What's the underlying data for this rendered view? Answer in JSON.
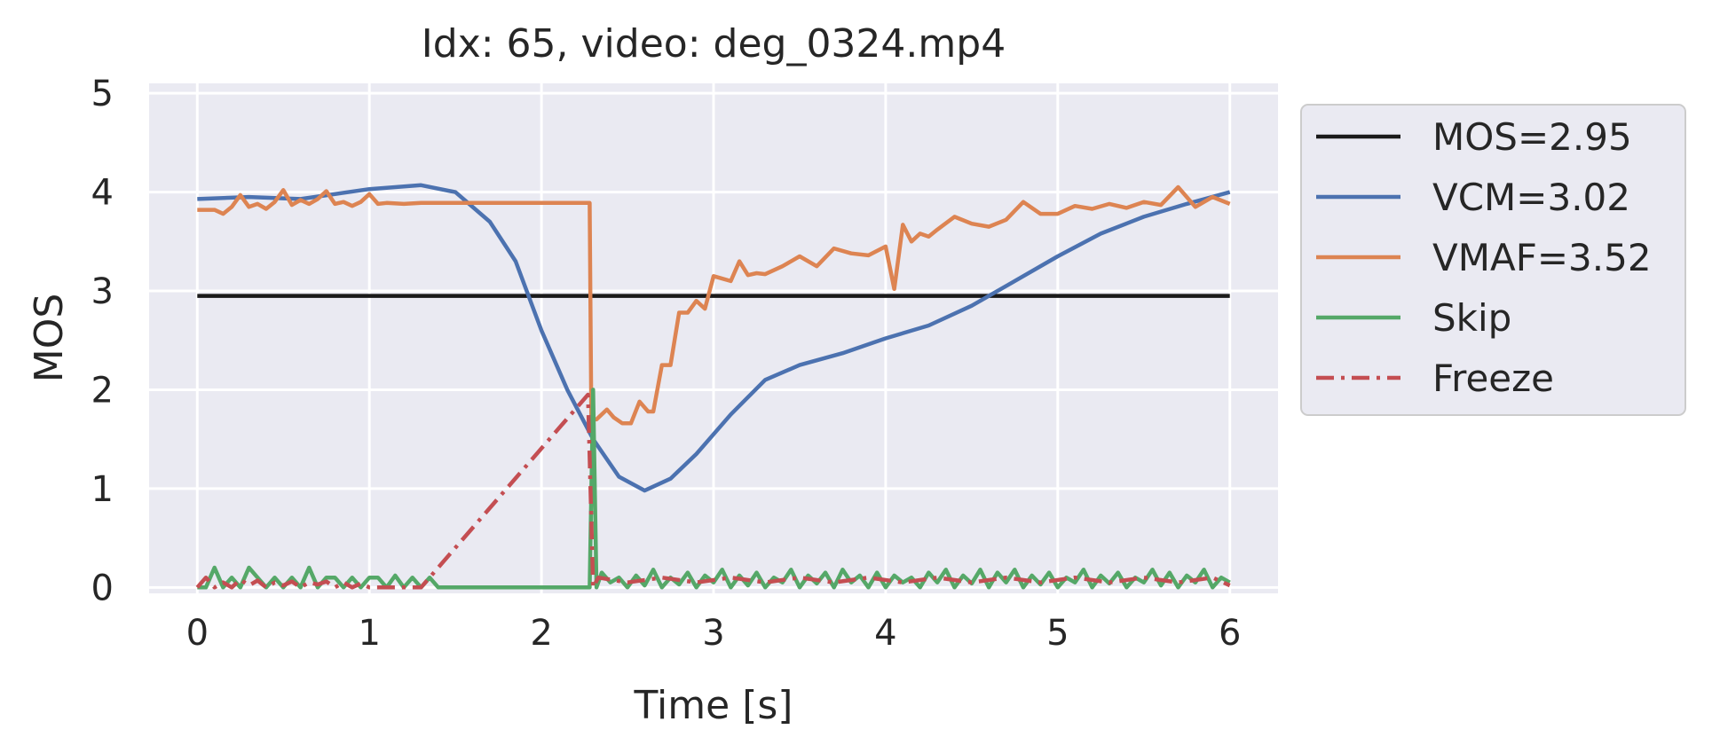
{
  "chart_data": {
    "type": "line",
    "title": "Idx: 65, video: deg_0324.mp4",
    "xlabel": "Time [s]",
    "ylabel": "MOS",
    "xlim": [
      -0.28,
      6.28
    ],
    "ylim": [
      -0.06,
      5.1
    ],
    "xticks": [
      0,
      1,
      2,
      3,
      4,
      5,
      6
    ],
    "yticks": [
      0,
      1,
      2,
      3,
      4,
      5
    ],
    "grid": true,
    "legend_position": "outside-right",
    "series": [
      {
        "name": "MOS=2.95",
        "color": "#1a1a1a",
        "style": "solid",
        "x": [
          0,
          6
        ],
        "y": [
          2.95,
          2.95
        ]
      },
      {
        "name": "VCM=3.02",
        "color": "#4c72b0",
        "style": "solid",
        "x": [
          0,
          0.3,
          0.6,
          1.0,
          1.3,
          1.5,
          1.7,
          1.85,
          2.0,
          2.15,
          2.3,
          2.45,
          2.6,
          2.75,
          2.9,
          3.1,
          3.3,
          3.5,
          3.75,
          4.0,
          4.25,
          4.5,
          4.75,
          5.0,
          5.25,
          5.5,
          5.75,
          6.0
        ],
        "y": [
          3.93,
          3.95,
          3.93,
          4.03,
          4.07,
          4.0,
          3.7,
          3.3,
          2.6,
          2.0,
          1.5,
          1.12,
          0.98,
          1.1,
          1.35,
          1.75,
          2.1,
          2.25,
          2.37,
          2.52,
          2.65,
          2.85,
          3.1,
          3.35,
          3.58,
          3.75,
          3.88,
          4.0
        ]
      },
      {
        "name": "VMAF=3.52",
        "color": "#dd8452",
        "style": "solid",
        "x": [
          0,
          0.1,
          0.15,
          0.2,
          0.25,
          0.3,
          0.35,
          0.4,
          0.45,
          0.5,
          0.55,
          0.6,
          0.65,
          0.7,
          0.75,
          0.8,
          0.85,
          0.9,
          0.95,
          1.0,
          1.05,
          1.1,
          1.2,
          1.3,
          1.4,
          1.6,
          1.8,
          2.0,
          2.1,
          2.2,
          2.28,
          2.29,
          2.32,
          2.38,
          2.42,
          2.47,
          2.52,
          2.57,
          2.62,
          2.65,
          2.7,
          2.75,
          2.8,
          2.85,
          2.9,
          2.95,
          3.0,
          3.1,
          3.15,
          3.2,
          3.25,
          3.3,
          3.4,
          3.5,
          3.6,
          3.7,
          3.8,
          3.9,
          4.0,
          4.05,
          4.1,
          4.15,
          4.2,
          4.25,
          4.3,
          4.4,
          4.5,
          4.6,
          4.7,
          4.8,
          4.9,
          5.0,
          5.1,
          5.2,
          5.3,
          5.4,
          5.5,
          5.6,
          5.7,
          5.8,
          5.9,
          6.0
        ],
        "y": [
          3.82,
          3.82,
          3.78,
          3.85,
          3.97,
          3.85,
          3.88,
          3.83,
          3.9,
          4.02,
          3.87,
          3.92,
          3.88,
          3.93,
          4.01,
          3.88,
          3.9,
          3.86,
          3.9,
          3.98,
          3.88,
          3.89,
          3.88,
          3.89,
          3.89,
          3.89,
          3.89,
          3.89,
          3.89,
          3.89,
          3.89,
          1.7,
          1.7,
          1.8,
          1.72,
          1.66,
          1.66,
          1.88,
          1.78,
          1.78,
          2.25,
          2.25,
          2.78,
          2.78,
          2.9,
          2.82,
          3.15,
          3.1,
          3.3,
          3.16,
          3.18,
          3.17,
          3.25,
          3.35,
          3.25,
          3.43,
          3.38,
          3.36,
          3.45,
          3.02,
          3.67,
          3.5,
          3.58,
          3.55,
          3.62,
          3.75,
          3.68,
          3.65,
          3.72,
          3.9,
          3.78,
          3.78,
          3.86,
          3.83,
          3.88,
          3.84,
          3.9,
          3.87,
          4.05,
          3.85,
          3.95,
          3.88
        ]
      },
      {
        "name": "Skip",
        "color": "#55a868",
        "style": "solid",
        "x": [
          0,
          0.05,
          0.1,
          0.15,
          0.2,
          0.25,
          0.3,
          0.35,
          0.4,
          0.45,
          0.5,
          0.55,
          0.6,
          0.65,
          0.7,
          0.75,
          0.8,
          0.85,
          0.9,
          0.95,
          1.0,
          1.05,
          1.1,
          1.15,
          1.2,
          1.25,
          1.3,
          1.35,
          1.4,
          2.25,
          2.28,
          2.3,
          2.32,
          2.35,
          2.4,
          2.45,
          2.5,
          2.55,
          2.6,
          2.65,
          2.7,
          2.75,
          2.8,
          2.85,
          2.9,
          2.95,
          3.0,
          3.05,
          3.1,
          3.15,
          3.2,
          3.25,
          3.3,
          3.35,
          3.4,
          3.45,
          3.5,
          3.55,
          3.6,
          3.65,
          3.7,
          3.75,
          3.8,
          3.85,
          3.9,
          3.95,
          4.0,
          4.05,
          4.1,
          4.15,
          4.2,
          4.25,
          4.3,
          4.35,
          4.4,
          4.45,
          4.5,
          4.55,
          4.6,
          4.65,
          4.7,
          4.75,
          4.8,
          4.85,
          4.9,
          4.95,
          5.0,
          5.05,
          5.1,
          5.15,
          5.2,
          5.25,
          5.3,
          5.35,
          5.4,
          5.45,
          5.5,
          5.55,
          5.6,
          5.65,
          5.7,
          5.75,
          5.8,
          5.85,
          5.9,
          5.95,
          6.0
        ],
        "y": [
          0,
          0,
          0.2,
          0,
          0.1,
          0,
          0.2,
          0.1,
          0,
          0.1,
          0,
          0.1,
          0,
          0.2,
          0,
          0.1,
          0.1,
          0,
          0.1,
          0,
          0.1,
          0.1,
          0,
          0.12,
          0,
          0.1,
          0,
          0.1,
          0,
          0,
          0,
          2.0,
          0,
          0.15,
          0.05,
          0.1,
          0,
          0.12,
          0.02,
          0.18,
          0,
          0.1,
          0.03,
          0.15,
          0,
          0.12,
          0.05,
          0.18,
          0,
          0.12,
          0.02,
          0.15,
          0,
          0.1,
          0.05,
          0.18,
          0,
          0.12,
          0.04,
          0.15,
          0,
          0.18,
          0.05,
          0.12,
          0,
          0.15,
          0,
          0.12,
          0.05,
          0.1,
          0,
          0.15,
          0.05,
          0.18,
          0,
          0.12,
          0.04,
          0.18,
          0,
          0.15,
          0.05,
          0.18,
          0,
          0.12,
          0.03,
          0.15,
          0,
          0.1,
          0.05,
          0.18,
          0,
          0.12,
          0.04,
          0.15,
          0,
          0.1,
          0.05,
          0.18,
          0.02,
          0.15,
          0,
          0.12,
          0.05,
          0.18,
          0,
          0.1,
          0.05
        ]
      },
      {
        "name": "Freeze",
        "color": "#c44e52",
        "style": "dashdot",
        "x": [
          0,
          0.05,
          0.1,
          0.15,
          0.2,
          0.25,
          0.3,
          0.35,
          0.4,
          0.45,
          0.5,
          0.55,
          0.6,
          0.65,
          0.7,
          0.75,
          0.8,
          0.85,
          0.9,
          0.95,
          1.0,
          1.3,
          2.27,
          2.3,
          2.33,
          2.5,
          2.7,
          2.9,
          3.1,
          3.3,
          3.5,
          3.7,
          3.9,
          4.1,
          4.3,
          4.5,
          4.7,
          4.9,
          5.1,
          5.3,
          5.5,
          5.7,
          5.9,
          6.0
        ],
        "y": [
          0,
          0.1,
          0,
          0.05,
          0,
          0.08,
          0.02,
          0.07,
          0,
          0.05,
          0.02,
          0.06,
          0,
          0.05,
          0.03,
          0.06,
          0,
          0.05,
          0,
          0.04,
          0,
          0,
          1.95,
          0,
          0.1,
          0.05,
          0.1,
          0.05,
          0.1,
          0.05,
          0.1,
          0.05,
          0.1,
          0.05,
          0.1,
          0.05,
          0.1,
          0.05,
          0.1,
          0.05,
          0.1,
          0.05,
          0.1,
          0.02
        ]
      }
    ]
  }
}
